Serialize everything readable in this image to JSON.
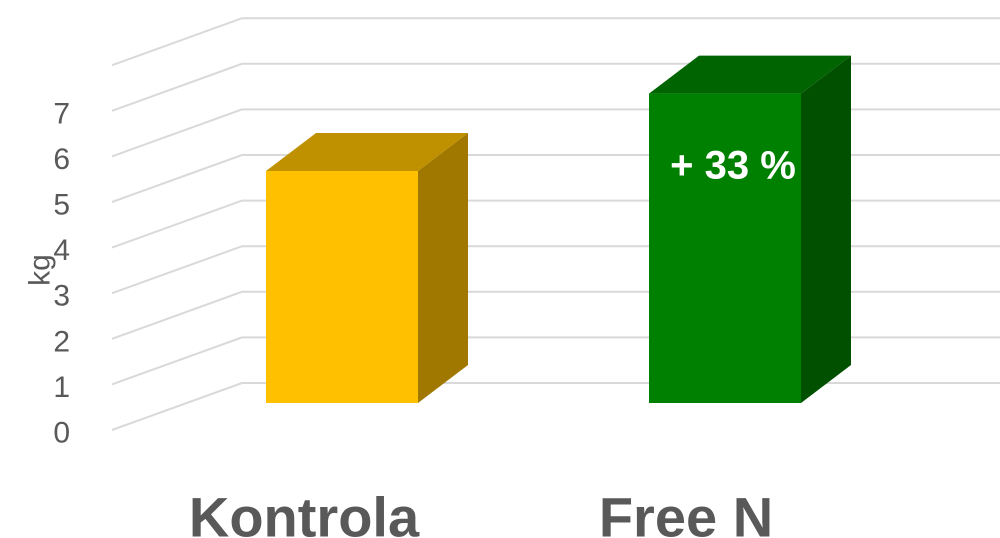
{
  "chart_data": {
    "type": "bar",
    "categories": [
      "Kontrola",
      "Free N"
    ],
    "values": [
      5.1,
      6.8
    ],
    "ylabel": "kg",
    "xlabel": "",
    "ylim": [
      0,
      7
    ],
    "yticks": [
      "0",
      "1",
      "2",
      "3",
      "4",
      "5",
      "6",
      "7"
    ],
    "grid": true,
    "colors": {
      "Kontrola": {
        "front": "#FFC000",
        "top": "#BF9000",
        "side": "#A07800"
      },
      "Free N": {
        "front": "#008000",
        "top": "#006400",
        "side": "#005000"
      }
    },
    "annotations": [
      {
        "category": "Free N",
        "text": "+ 33 %"
      }
    ]
  }
}
